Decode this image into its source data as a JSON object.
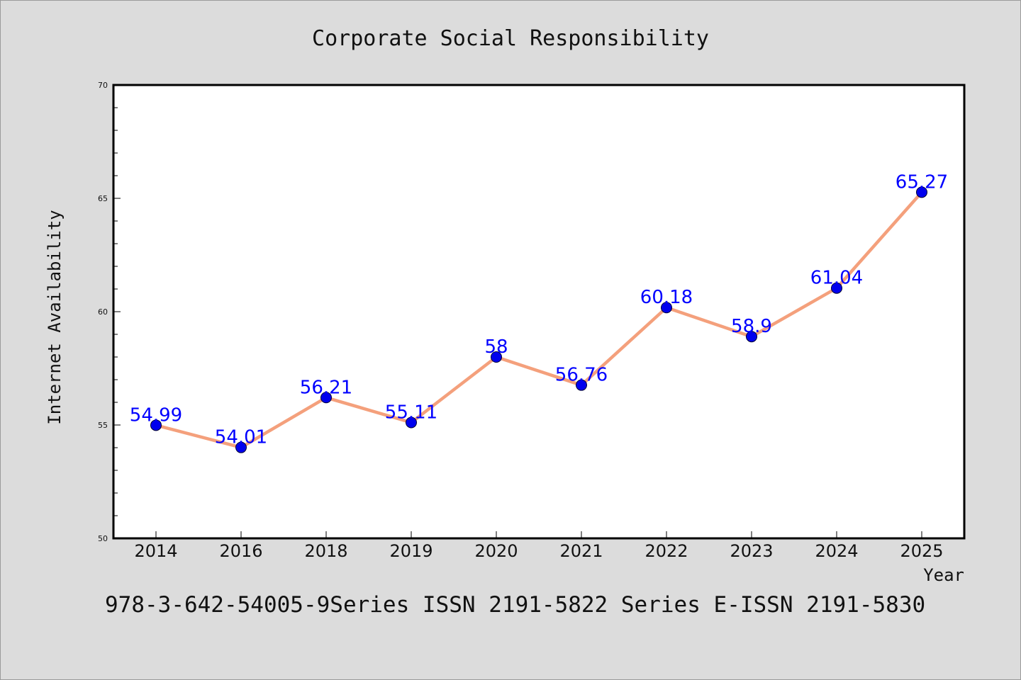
{
  "chart_data": {
    "type": "line",
    "title": "Corporate Social Responsibility",
    "xlabel": "Year",
    "ylabel": "Internet Availability",
    "categories": [
      "2014",
      "2016",
      "2018",
      "2019",
      "2020",
      "2021",
      "2022",
      "2023",
      "2024",
      "2025"
    ],
    "values": [
      54.99,
      54.01,
      56.21,
      55.11,
      58,
      56.76,
      60.18,
      58.9,
      61.04,
      65.27
    ],
    "data_labels": [
      "54.99",
      "54.01",
      "56.21",
      "55.11",
      "58",
      "56.76",
      "60.18",
      "58.9",
      "61.04",
      "65.27"
    ],
    "ylim": [
      50,
      70
    ],
    "yticks": [
      "50",
      "55",
      "60",
      "65",
      "70"
    ],
    "grid": false,
    "line_color": "#f4a07c",
    "marker_color": "#0000ee",
    "label_color": "#0000ff"
  },
  "footer": {
    "caption": "978-3-642-54005-9Series ISSN 2191-5822 Series E-ISSN 2191-5830"
  }
}
